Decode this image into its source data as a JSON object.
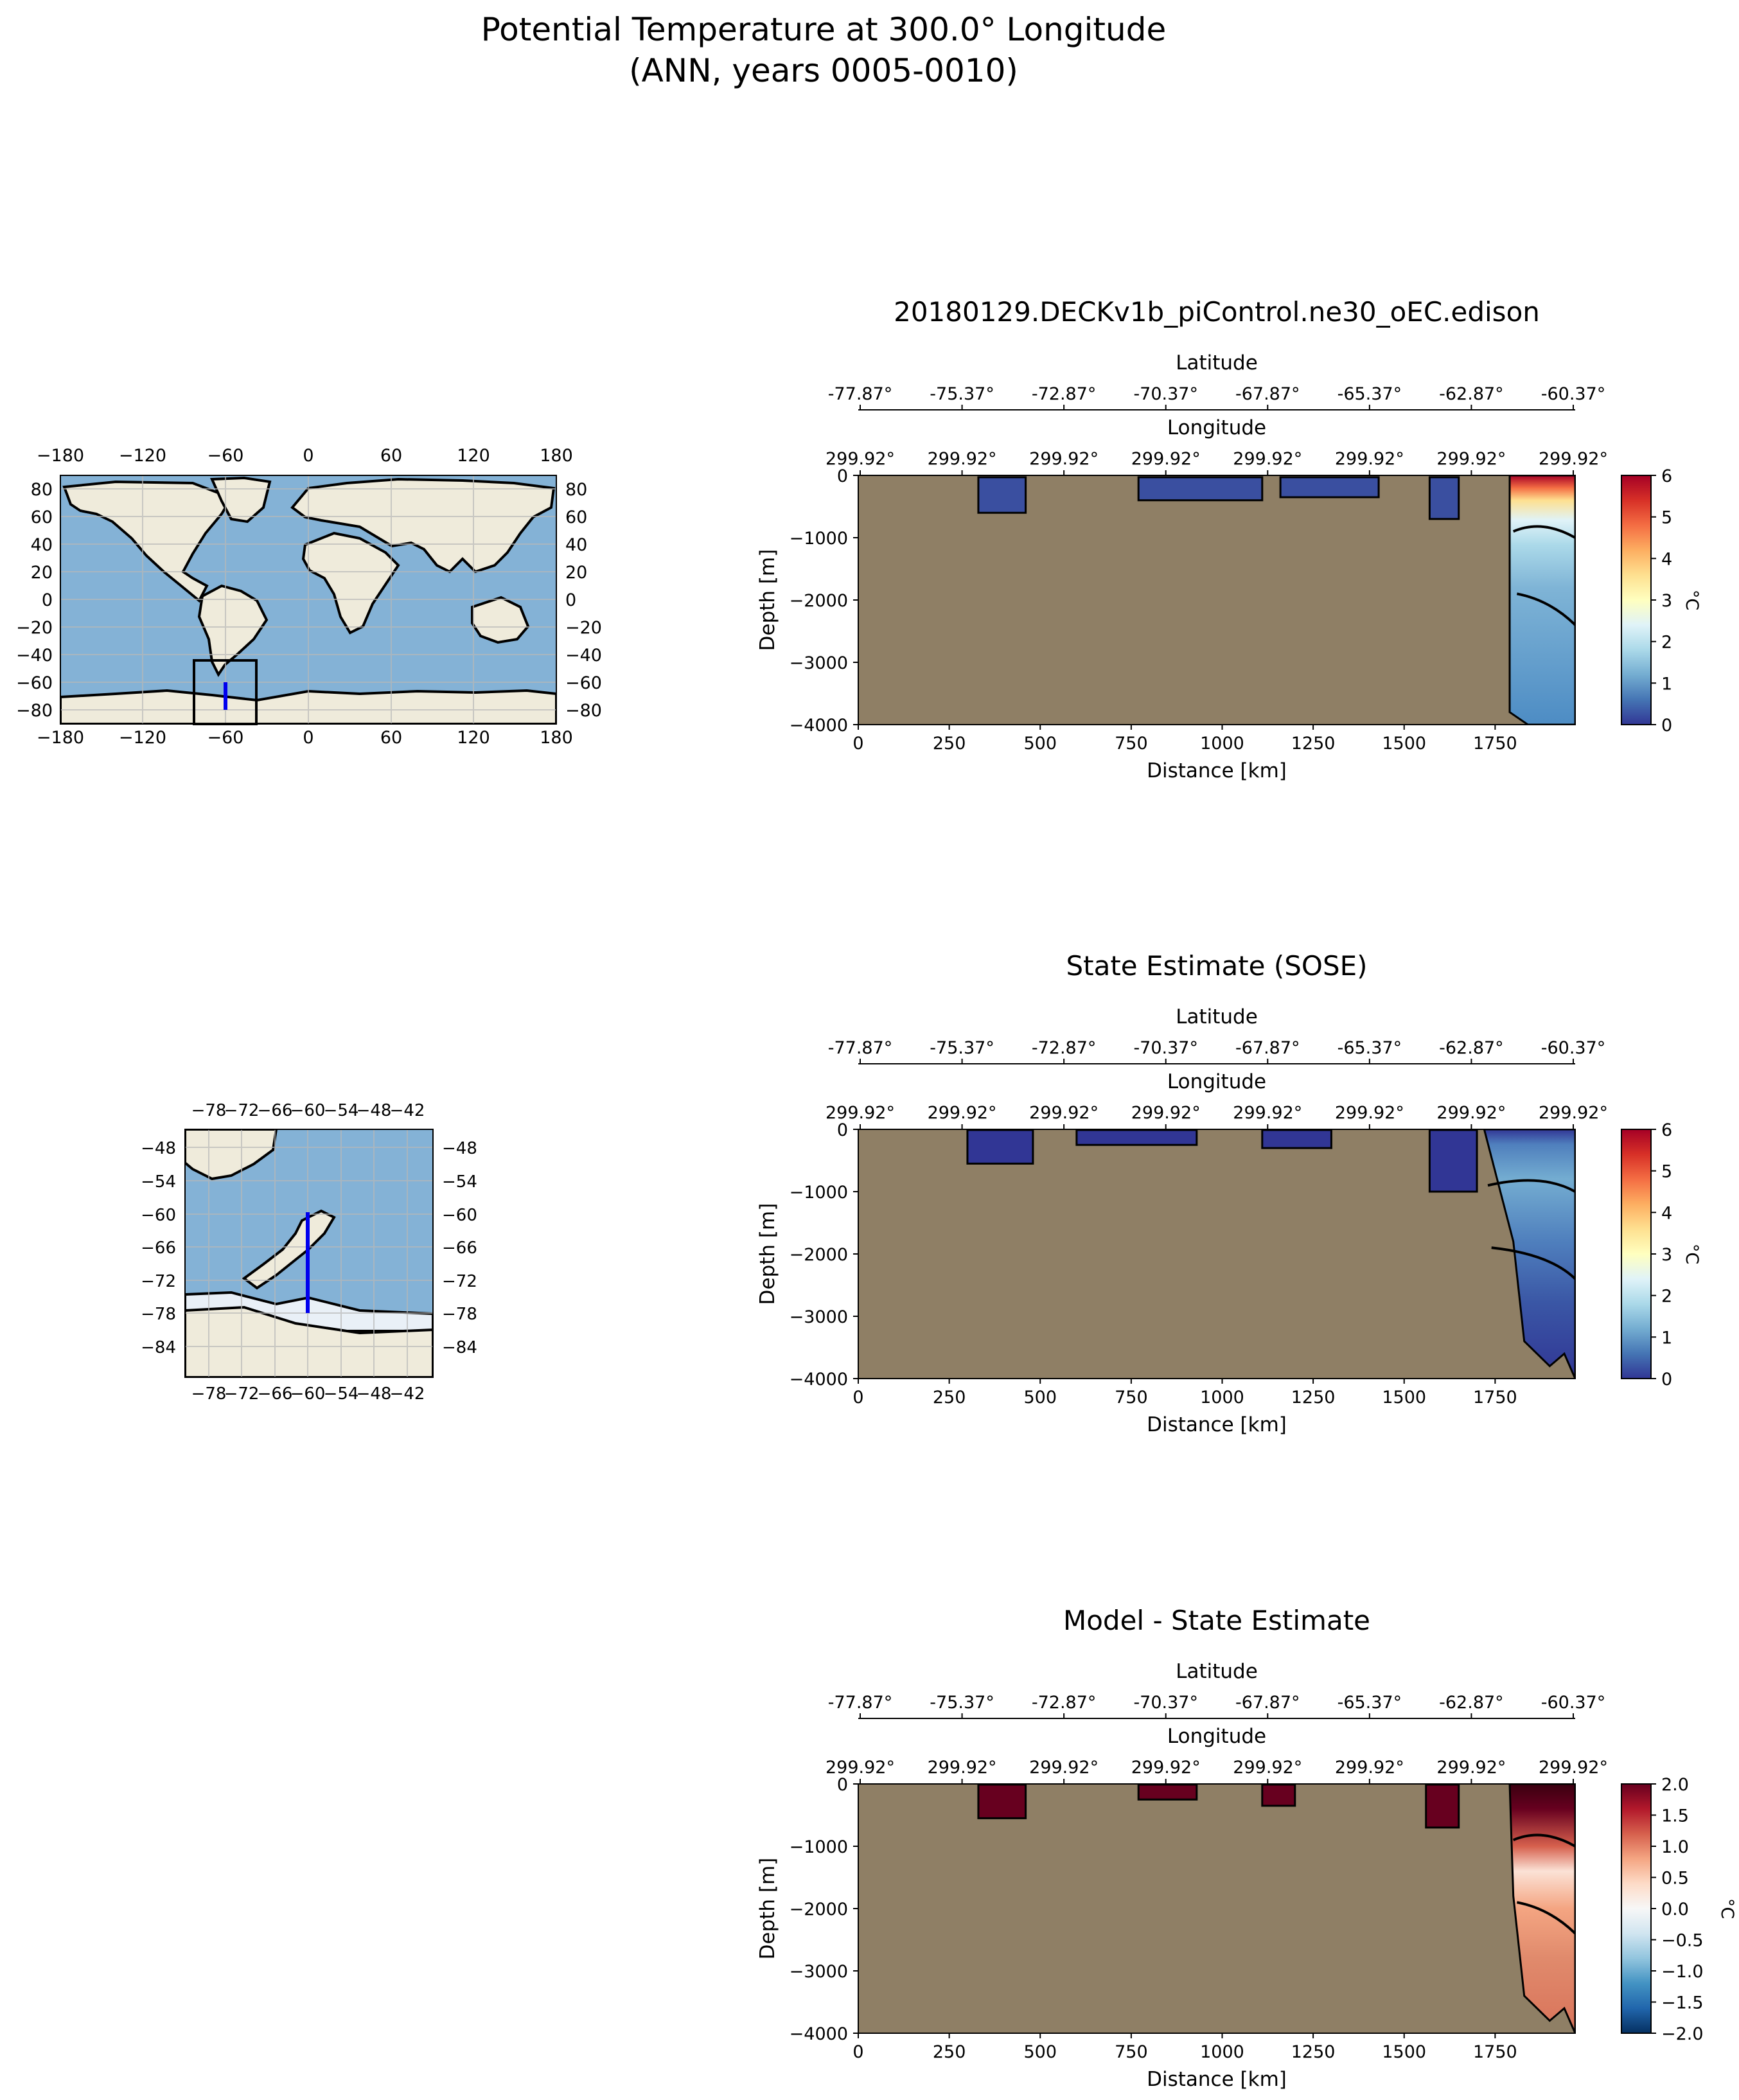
{
  "figure": {
    "title_line1": "Potential Temperature at 300.0° Longitude",
    "title_line2": "(ANN, years 0005-0010)"
  },
  "colors": {
    "land": "#8f7f65",
    "map_ocean": "#84b2d6",
    "map_land": "#efebdb",
    "transect": "#0000ee"
  },
  "global_map": {
    "x_ticks": [
      "−180",
      "−120",
      "−60",
      "0",
      "60",
      "120",
      "180"
    ],
    "y_ticks": [
      "80",
      "60",
      "40",
      "20",
      "0",
      "−20",
      "−40",
      "−60",
      "−80"
    ]
  },
  "inset_map": {
    "x_ticks": [
      "−78",
      "−72",
      "−66",
      "−60",
      "−54",
      "−48",
      "−42"
    ],
    "y_ticks": [
      "−48",
      "−54",
      "−60",
      "−66",
      "−72",
      "−78",
      "−84"
    ]
  },
  "chart_data": [
    {
      "type": "heatmap",
      "title": "20180129.DECKv1b_piControl.ne30_oEC.edison",
      "xlabel": "Distance [km]",
      "ylabel": "Depth [m]",
      "x_ticks": [
        "0",
        "250",
        "500",
        "750",
        "1000",
        "1250",
        "1500",
        "1750"
      ],
      "y_ticks": [
        "0",
        "−1000",
        "−2000",
        "−3000",
        "−4000"
      ],
      "xlim": [
        0,
        1970
      ],
      "ylim": [
        -4000,
        0
      ],
      "lat_axis_label": "Latitude",
      "lat_ticks": [
        "-77.87°",
        "-75.37°",
        "-72.87°",
        "-70.37°",
        "-67.87°",
        "-65.37°",
        "-62.87°",
        "-60.37°"
      ],
      "lon_axis_label": "Longitude",
      "lon_ticks": [
        "299.92°",
        "299.92°",
        "299.92°",
        "299.92°",
        "299.92°",
        "299.92°",
        "299.92°",
        "299.92°"
      ],
      "colorbar": {
        "label": "°C",
        "min": 0,
        "max": 6,
        "ticks": [
          "0",
          "1",
          "2",
          "3",
          "4",
          "5",
          "6"
        ],
        "colormap": [
          "#313695",
          "#4575b4",
          "#74add1",
          "#abd9e9",
          "#e0f3f8",
          "#ffffbf",
          "#fee090",
          "#fdae61",
          "#f46d43",
          "#d73027",
          "#a50026"
        ]
      }
    },
    {
      "type": "heatmap",
      "title": "State Estimate (SOSE)",
      "xlabel": "Distance [km]",
      "ylabel": "Depth [m]",
      "x_ticks": [
        "0",
        "250",
        "500",
        "750",
        "1000",
        "1250",
        "1500",
        "1750"
      ],
      "y_ticks": [
        "0",
        "−1000",
        "−2000",
        "−3000",
        "−4000"
      ],
      "xlim": [
        0,
        1970
      ],
      "ylim": [
        -4000,
        0
      ],
      "lat_axis_label": "Latitude",
      "lat_ticks": [
        "-77.87°",
        "-75.37°",
        "-72.87°",
        "-70.37°",
        "-67.87°",
        "-65.37°",
        "-62.87°",
        "-60.37°"
      ],
      "lon_axis_label": "Longitude",
      "lon_ticks": [
        "299.92°",
        "299.92°",
        "299.92°",
        "299.92°",
        "299.92°",
        "299.92°",
        "299.92°",
        "299.92°"
      ],
      "colorbar": {
        "label": "°C",
        "min": 0,
        "max": 6,
        "ticks": [
          "0",
          "1",
          "2",
          "3",
          "4",
          "5",
          "6"
        ],
        "colormap": [
          "#313695",
          "#4575b4",
          "#74add1",
          "#abd9e9",
          "#e0f3f8",
          "#ffffbf",
          "#fee090",
          "#fdae61",
          "#f46d43",
          "#d73027",
          "#a50026"
        ]
      }
    },
    {
      "type": "heatmap",
      "title": "Model - State Estimate",
      "xlabel": "Distance [km]",
      "ylabel": "Depth [m]",
      "x_ticks": [
        "0",
        "250",
        "500",
        "750",
        "1000",
        "1250",
        "1500",
        "1750"
      ],
      "y_ticks": [
        "0",
        "−1000",
        "−2000",
        "−3000",
        "−4000"
      ],
      "xlim": [
        0,
        1970
      ],
      "ylim": [
        -4000,
        0
      ],
      "lat_axis_label": "Latitude",
      "lat_ticks": [
        "-77.87°",
        "-75.37°",
        "-72.87°",
        "-70.37°",
        "-67.87°",
        "-65.37°",
        "-62.87°",
        "-60.37°"
      ],
      "lon_axis_label": "Longitude",
      "lon_ticks": [
        "299.92°",
        "299.92°",
        "299.92°",
        "299.92°",
        "299.92°",
        "299.92°",
        "299.92°",
        "299.92°"
      ],
      "colorbar": {
        "label": "°C",
        "min": -2,
        "max": 2,
        "ticks": [
          "−2.0",
          "−1.5",
          "−1.0",
          "−0.5",
          "0.0",
          "0.5",
          "1.0",
          "1.5",
          "2.0"
        ],
        "colormap": [
          "#053061",
          "#2166ac",
          "#4393c3",
          "#92c5de",
          "#d1e5f0",
          "#f7f7f7",
          "#fddbc7",
          "#f4a582",
          "#d6604d",
          "#b2182b",
          "#67001f"
        ]
      }
    }
  ]
}
